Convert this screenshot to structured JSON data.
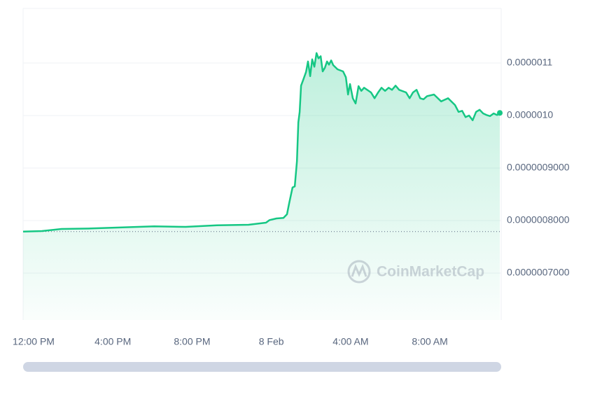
{
  "chart_data": {
    "type": "line",
    "watermark": "CoinMarketCap",
    "color": "#16c784",
    "grid": true,
    "x": [
      -0.53,
      0.42,
      1.41,
      2.9,
      4.49,
      6.08,
      7.67,
      9.26,
      10.85,
      11.73,
      11.91,
      12.26,
      12.61,
      12.79,
      12.9,
      13.07,
      13.18,
      13.29,
      13.36,
      13.43,
      13.5,
      13.6,
      13.75,
      13.85,
      13.96,
      14.06,
      14.17,
      14.28,
      14.38,
      14.49,
      14.59,
      14.7,
      14.81,
      14.91,
      15.02,
      15.12,
      15.34,
      15.62,
      15.76,
      15.87,
      15.97,
      16.11,
      16.25,
      16.4,
      16.54,
      16.68,
      17.03,
      17.21,
      17.39,
      17.56,
      17.74,
      17.92,
      18.09,
      18.27,
      18.45,
      18.8,
      18.98,
      19.15,
      19.33,
      19.51,
      19.68,
      19.86,
      20.21,
      20.57,
      20.92,
      21.27,
      21.45,
      21.63,
      21.8,
      21.98,
      22.16,
      22.33,
      22.51,
      22.69,
      22.86,
      23.04,
      23.22,
      23.39,
      23.53
    ],
    "values": [
      7.79e-07,
      7.8e-07,
      7.84e-07,
      7.85e-07,
      7.87e-07,
      7.89e-07,
      7.88e-07,
      7.91e-07,
      7.92e-07,
      7.96e-07,
      8.01e-07,
      8.04e-07,
      8.05e-07,
      8.12e-07,
      8.33e-07,
      8.63e-07,
      8.65e-07,
      9.13e-07,
      9.87e-07,
      1.007e-06,
      1.057e-06,
      1.067e-06,
      1.083e-06,
      1.103e-06,
      1.075e-06,
      1.107e-06,
      1.093e-06,
      1.119e-06,
      1.109e-06,
      1.113e-06,
      1.084e-06,
      1.091e-06,
      1.103e-06,
      1.097e-06,
      1.105e-06,
      1.096e-06,
      1.088e-06,
      1.084e-06,
      1.073e-06,
      1.04e-06,
      1.06e-06,
      1.033e-06,
      1.023e-06,
      1.056e-06,
      1.047e-06,
      1.053e-06,
      1.044e-06,
      1.033e-06,
      1.044e-06,
      1.053e-06,
      1.047e-06,
      1.053e-06,
      1.049e-06,
      1.057e-06,
      1.049e-06,
      1.044e-06,
      1.033e-06,
      1.044e-06,
      1.049e-06,
      1.033e-06,
      1.031e-06,
      1.037e-06,
      1.04e-06,
      1.027e-06,
      1.033e-06,
      1.02e-06,
      1.007e-06,
      1.009e-06,
      9.97e-07,
      1e-06,
      9.91e-07,
      1.007e-06,
      1.011e-06,
      1.004e-06,
      1.001e-06,
      9.99e-07,
      1.004e-06,
      1.001e-06,
      1.005e-06
    ],
    "xlim": [
      -0.53,
      23.6
    ],
    "xticks": [
      {
        "value": 0,
        "label": "12:00 PM"
      },
      {
        "value": 4,
        "label": "4:00 PM"
      },
      {
        "value": 8,
        "label": "8:00 PM"
      },
      {
        "value": 12,
        "label": "8 Feb"
      },
      {
        "value": 16,
        "label": "4:00 AM"
      },
      {
        "value": 20,
        "label": "8:00 AM"
      }
    ],
    "ylim": [
      6.107e-07,
      1.204e-06
    ],
    "yticks": [
      {
        "value": 1.1e-06,
        "label": "0.0000011"
      },
      {
        "value": 1e-06,
        "label": "0.0000010"
      },
      {
        "value": 9e-07,
        "label": "0.0000009000"
      },
      {
        "value": 8e-07,
        "label": "0.0000008000"
      },
      {
        "value": 7e-07,
        "label": "0.0000007000"
      }
    ]
  }
}
